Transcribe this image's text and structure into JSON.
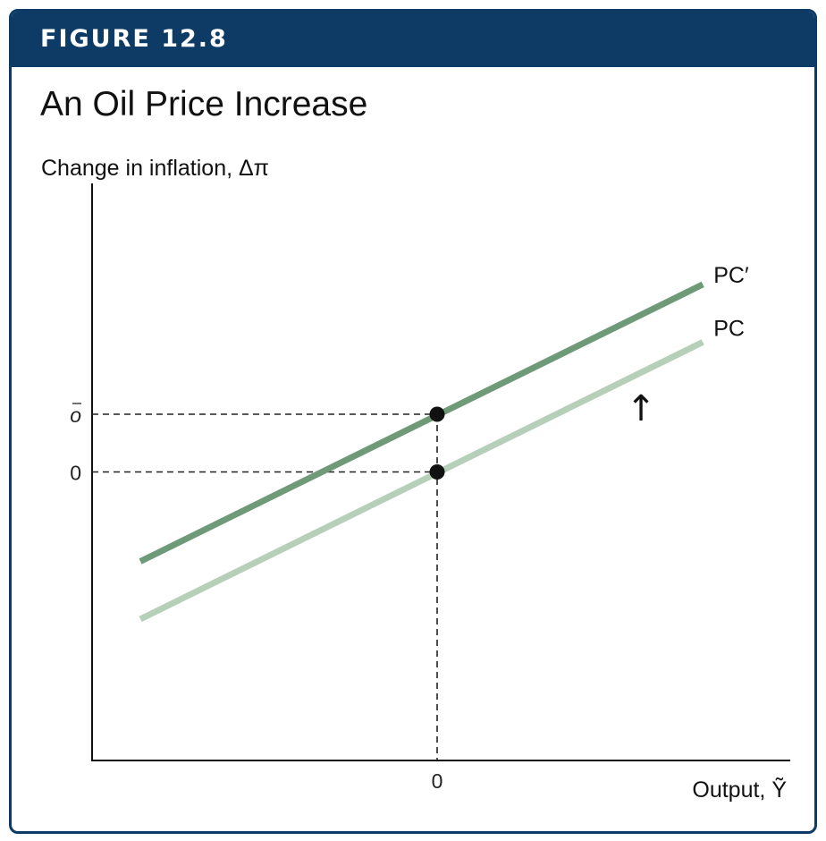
{
  "header": {
    "figure_label": "FIGURE 12.8"
  },
  "title": "An Oil Price Increase",
  "chart_data": {
    "type": "line",
    "ylabel": "Change in inflation, Δπ",
    "xlabel": "Output, Ỹ",
    "xlim": [
      -1,
      1
    ],
    "ylim": [
      -1,
      1
    ],
    "grid": false,
    "y_ticks": [
      {
        "value": 0,
        "label": "0"
      },
      {
        "value": 0.2,
        "label": "o"
      }
    ],
    "x_ticks": [
      {
        "value": 0,
        "label": "0"
      }
    ],
    "series": [
      {
        "name": "PC′",
        "color": "#6f9a78",
        "x": [
          -0.86,
          0.77
        ],
        "y": [
          -0.31,
          0.65
        ]
      },
      {
        "name": "PC",
        "color": "#b6cfb8",
        "x": [
          -0.86,
          0.77
        ],
        "y": [
          -0.51,
          0.45
        ]
      }
    ],
    "points": [
      {
        "x": 0,
        "y": 0.2
      },
      {
        "x": 0,
        "y": 0
      }
    ],
    "annotations": [
      {
        "text": "↑"
      }
    ]
  }
}
